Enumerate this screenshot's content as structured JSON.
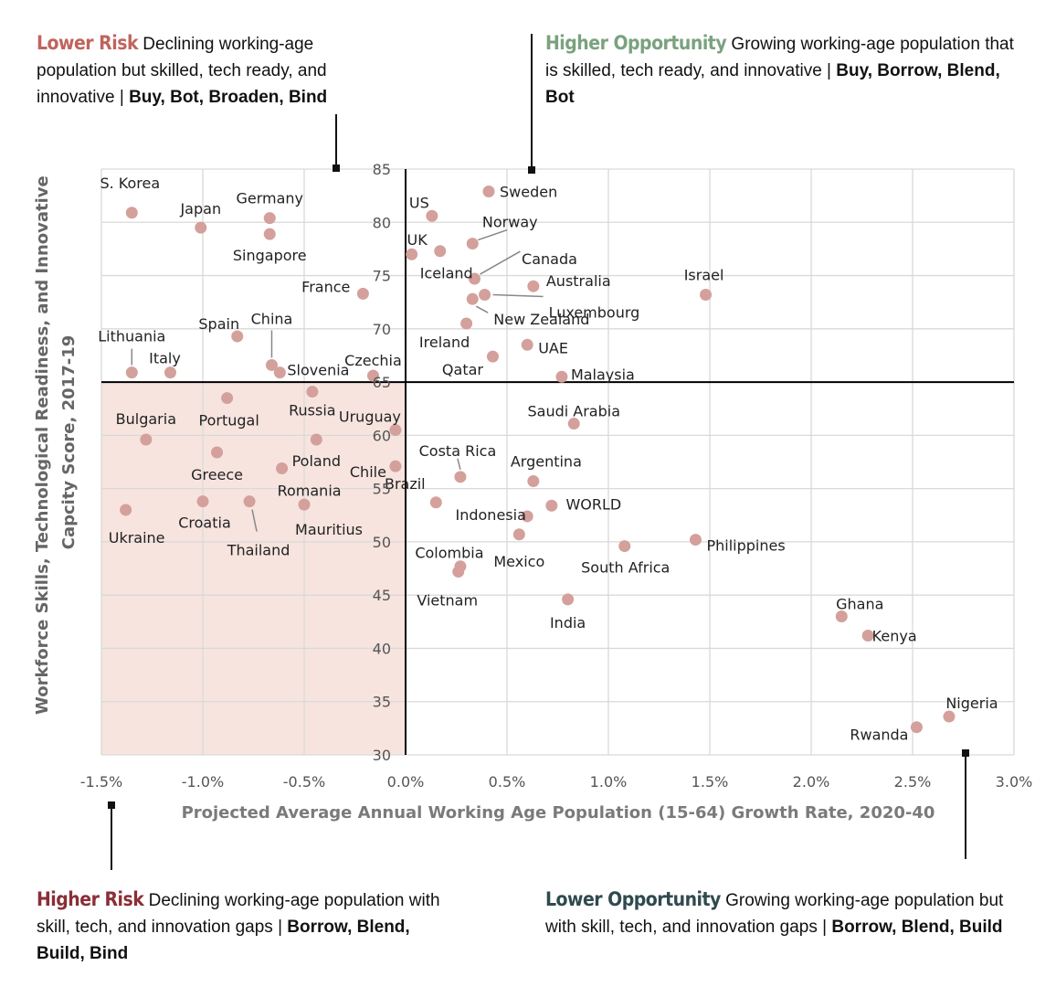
{
  "quadrants": {
    "top_left": {
      "title": "Lower Risk",
      "title_color": "#c0645d",
      "desc": "Declining working-age population but skilled, tech ready, and innovative |",
      "strategies": "Buy, Bot, Broaden, Bind"
    },
    "top_right": {
      "title": "Higher Opportunity",
      "title_color": "#7aa27f",
      "desc": "Growing working-age population that is skilled, tech ready, and innovative |",
      "strategies": "Buy, Borrow, Blend, Bot"
    },
    "bottom_left": {
      "title": "Higher Risk",
      "title_color": "#8b2e36",
      "desc": "Declining working-age population with skill, tech, and innovation gaps",
      "strategies": "Borrow, Blend, Build, Bind",
      "separator": "|"
    },
    "bottom_right": {
      "title": "Lower Opportunity",
      "title_color": "#2f4a4f",
      "desc": "Growing working-age population but with skill, tech, and innovation gaps |",
      "strategies": "Borrow, Blend, Build"
    }
  },
  "chart_data": {
    "type": "scatter",
    "title": "",
    "xlabel": "Projected Average Annual Working Age Population (15-64) Growth Rate, 2020-40",
    "ylabel": "Workforce Skills, Technological Readiness, and Innovative Capcity Score, 2017-19",
    "xlim": [
      -1.5,
      3.0
    ],
    "ylim": [
      30,
      85
    ],
    "xticks": [
      "-1.5%",
      "-1.0%",
      "-0.5%",
      "0.0%",
      "0.5%",
      "1.0%",
      "1.5%",
      "2.0%",
      "2.5%",
      "3.0%"
    ],
    "yticks": [
      "30",
      "35",
      "40",
      "45",
      "50",
      "55",
      "60",
      "65",
      "70",
      "75",
      "80",
      "85"
    ],
    "x_divider": 0.0,
    "y_divider": 65,
    "grid": true,
    "point_color": "#d4a09b",
    "shade_color": "#f7e4df",
    "points": [
      {
        "label": "S. Korea",
        "x": -1.35,
        "y": 80.9
      },
      {
        "label": "Japan",
        "x": -1.01,
        "y": 79.5
      },
      {
        "label": "Germany",
        "x": -0.67,
        "y": 80.4
      },
      {
        "label": "Singapore",
        "x": -0.67,
        "y": 78.9
      },
      {
        "label": "France",
        "x": -0.21,
        "y": 73.3
      },
      {
        "label": "Lithuania",
        "x": -1.35,
        "y": 65.9
      },
      {
        "label": "Italy",
        "x": -1.16,
        "y": 65.9
      },
      {
        "label": "Spain",
        "x": -0.83,
        "y": 69.3
      },
      {
        "label": "China",
        "x": -0.66,
        "y": 66.6
      },
      {
        "label": "Slovenia",
        "x": -0.62,
        "y": 65.9
      },
      {
        "label": "Czechia",
        "x": -0.16,
        "y": 65.6
      },
      {
        "label": "US",
        "x": 0.13,
        "y": 80.6
      },
      {
        "label": "Sweden",
        "x": 0.41,
        "y": 82.9
      },
      {
        "label": "UK",
        "x": 0.03,
        "y": 77.0
      },
      {
        "label": "Norway",
        "x": 0.33,
        "y": 78.0
      },
      {
        "label": "Iceland",
        "x": 0.17,
        "y": 77.3
      },
      {
        "label": "Canada",
        "x": 0.34,
        "y": 74.7
      },
      {
        "label": "Australia",
        "x": 0.63,
        "y": 74.0
      },
      {
        "label": "Israel",
        "x": 1.48,
        "y": 73.2
      },
      {
        "label": "Luxembourg",
        "x": 0.39,
        "y": 73.2
      },
      {
        "label": "New Zealand",
        "x": 0.33,
        "y": 72.8
      },
      {
        "label": "Ireland",
        "x": 0.3,
        "y": 70.5
      },
      {
        "label": "UAE",
        "x": 0.6,
        "y": 68.5
      },
      {
        "label": "Qatar",
        "x": 0.43,
        "y": 67.4
      },
      {
        "label": "Malaysia",
        "x": 0.77,
        "y": 65.5
      },
      {
        "label": "Bulgaria",
        "x": -1.28,
        "y": 59.6
      },
      {
        "label": "Portugal",
        "x": -0.88,
        "y": 63.5
      },
      {
        "label": "Russia",
        "x": -0.46,
        "y": 64.1
      },
      {
        "label": "Uruguay",
        "x": -0.05,
        "y": 60.5
      },
      {
        "label": "Greece",
        "x": -0.93,
        "y": 58.4
      },
      {
        "label": "Poland",
        "x": -0.44,
        "y": 59.6
      },
      {
        "label": "Romania",
        "x": -0.61,
        "y": 56.9
      },
      {
        "label": "Chile",
        "x": -0.05,
        "y": 57.1
      },
      {
        "label": "Ukraine",
        "x": -1.38,
        "y": 53.0
      },
      {
        "label": "Croatia",
        "x": -1.0,
        "y": 53.8
      },
      {
        "label": "Thailand",
        "x": -0.77,
        "y": 53.8
      },
      {
        "label": "Mauritius",
        "x": -0.5,
        "y": 53.5
      },
      {
        "label": "Saudi Arabia",
        "x": 0.83,
        "y": 61.1
      },
      {
        "label": "Costa Rica",
        "x": 0.27,
        "y": 56.1
      },
      {
        "label": "Brazil",
        "x": 0.15,
        "y": 53.7
      },
      {
        "label": "Argentina",
        "x": 0.63,
        "y": 55.7
      },
      {
        "label": "WORLD",
        "x": 0.72,
        "y": 53.4
      },
      {
        "label": "Indonesia",
        "x": 0.6,
        "y": 52.4
      },
      {
        "label": "Mexico",
        "x": 0.56,
        "y": 50.7
      },
      {
        "label": "Colombia",
        "x": 0.27,
        "y": 47.7
      },
      {
        "label": "Vietnam",
        "x": 0.26,
        "y": 47.2
      },
      {
        "label": "South Africa",
        "x": 1.08,
        "y": 49.6
      },
      {
        "label": "Philippines",
        "x": 1.43,
        "y": 50.2
      },
      {
        "label": "India",
        "x": 0.8,
        "y": 44.6
      },
      {
        "label": "Ghana",
        "x": 2.15,
        "y": 43.0
      },
      {
        "label": "Kenya",
        "x": 2.28,
        "y": 41.2
      },
      {
        "label": "Nigeria",
        "x": 2.68,
        "y": 33.6
      },
      {
        "label": "Rwanda",
        "x": 2.52,
        "y": 32.6
      }
    ]
  }
}
